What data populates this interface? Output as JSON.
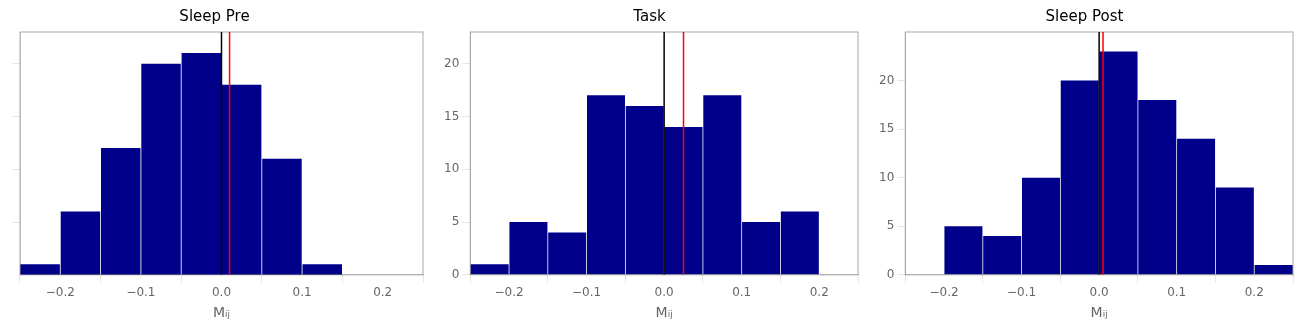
{
  "chart_data": [
    {
      "type": "histogram",
      "title": "Sleep Pre",
      "x_label": "Mᵢⱼ",
      "bins": [
        -0.25,
        -0.2,
        -0.15,
        -0.1,
        -0.05,
        0.0,
        0.05,
        0.1,
        0.15,
        0.2,
        0.25
      ],
      "values": [
        1,
        6,
        12,
        20,
        21,
        18,
        11,
        1,
        0,
        0
      ],
      "color": "#00008B",
      "vlines": [
        {
          "x": 0.0,
          "color": "#000000"
        },
        {
          "x": 0.01,
          "color": "#ff0000"
        }
      ],
      "xlim": [
        -0.25,
        0.25
      ],
      "xticks": [
        {
          "value": -0.2,
          "label": "−0.2"
        },
        {
          "value": -0.1,
          "label": "−0.1"
        },
        {
          "value": 0.0,
          "label": "0.0"
        },
        {
          "value": 0.1,
          "label": "0.1"
        },
        {
          "value": 0.2,
          "label": "0.2"
        }
      ],
      "ylim": [
        0,
        23
      ],
      "yticks": [
        5,
        10,
        15,
        20
      ],
      "grid": false,
      "tick_labels": "x"
    },
    {
      "type": "histogram",
      "title": "Task",
      "x_label": "Mᵢⱼ",
      "bins": [
        -0.25,
        -0.2,
        -0.15,
        -0.1,
        -0.05,
        0.0,
        0.05,
        0.1,
        0.15,
        0.2,
        0.25
      ],
      "values": [
        1,
        5,
        4,
        17,
        16,
        14,
        17,
        5,
        6,
        0
      ],
      "color": "#00008B",
      "vlines": [
        {
          "x": 0.0,
          "color": "#000000"
        },
        {
          "x": 0.025,
          "color": "#ff0000"
        }
      ],
      "xlim": [
        -0.25,
        0.25
      ],
      "xticks": [
        {
          "value": -0.2,
          "label": "−0.2"
        },
        {
          "value": -0.1,
          "label": "−0.1"
        },
        {
          "value": 0.0,
          "label": "0.0"
        },
        {
          "value": 0.1,
          "label": "0.1"
        },
        {
          "value": 0.2,
          "label": "0.2"
        }
      ],
      "ylim": [
        0,
        23
      ],
      "yticks": [
        0,
        5,
        10,
        15,
        20
      ],
      "grid": false
    },
    {
      "type": "histogram",
      "title": "Sleep Post",
      "x_label": "Mᵢⱼ",
      "bins": [
        -0.25,
        -0.2,
        -0.15,
        -0.1,
        -0.05,
        0.0,
        0.05,
        0.1,
        0.15,
        0.2,
        0.25
      ],
      "values": [
        0,
        5,
        4,
        10,
        20,
        23,
        18,
        14,
        9,
        1
      ],
      "color": "#00008B",
      "vlines": [
        {
          "x": 0.0,
          "color": "#000000"
        },
        {
          "x": 0.005,
          "color": "#ff0000"
        }
      ],
      "xlim": [
        -0.25,
        0.25
      ],
      "xticks": [
        {
          "value": -0.2,
          "label": "−0.2"
        },
        {
          "value": -0.1,
          "label": "−0.1"
        },
        {
          "value": 0.0,
          "label": "0.0"
        },
        {
          "value": 0.1,
          "label": "0.1"
        },
        {
          "value": 0.2,
          "label": "0.2"
        }
      ],
      "ylim": [
        0,
        25
      ],
      "yticks": [
        0,
        5,
        10,
        15,
        20
      ],
      "grid": false
    }
  ]
}
